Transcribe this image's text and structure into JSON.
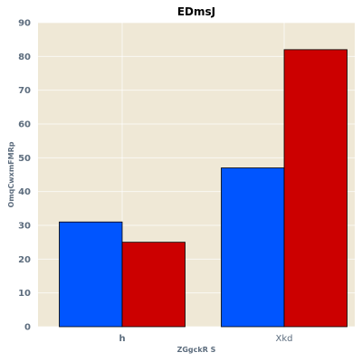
{
  "chart_data": {
    "type": "bar",
    "title": "EDmsJ",
    "xlabel": "ZGgckR S",
    "ylabel": "OmqCwxmFMRp",
    "categories": [
      "h",
      "Xkd"
    ],
    "series": [
      {
        "values": [
          31,
          47
        ],
        "color": "#0055ff"
      },
      {
        "values": [
          25,
          82
        ],
        "color": "#cc0000"
      }
    ],
    "ylim": [
      0,
      90
    ],
    "yticks": [
      0,
      10,
      20,
      30,
      40,
      50,
      60,
      70,
      80,
      90
    ],
    "grid": true,
    "background": "#efe8d6"
  }
}
